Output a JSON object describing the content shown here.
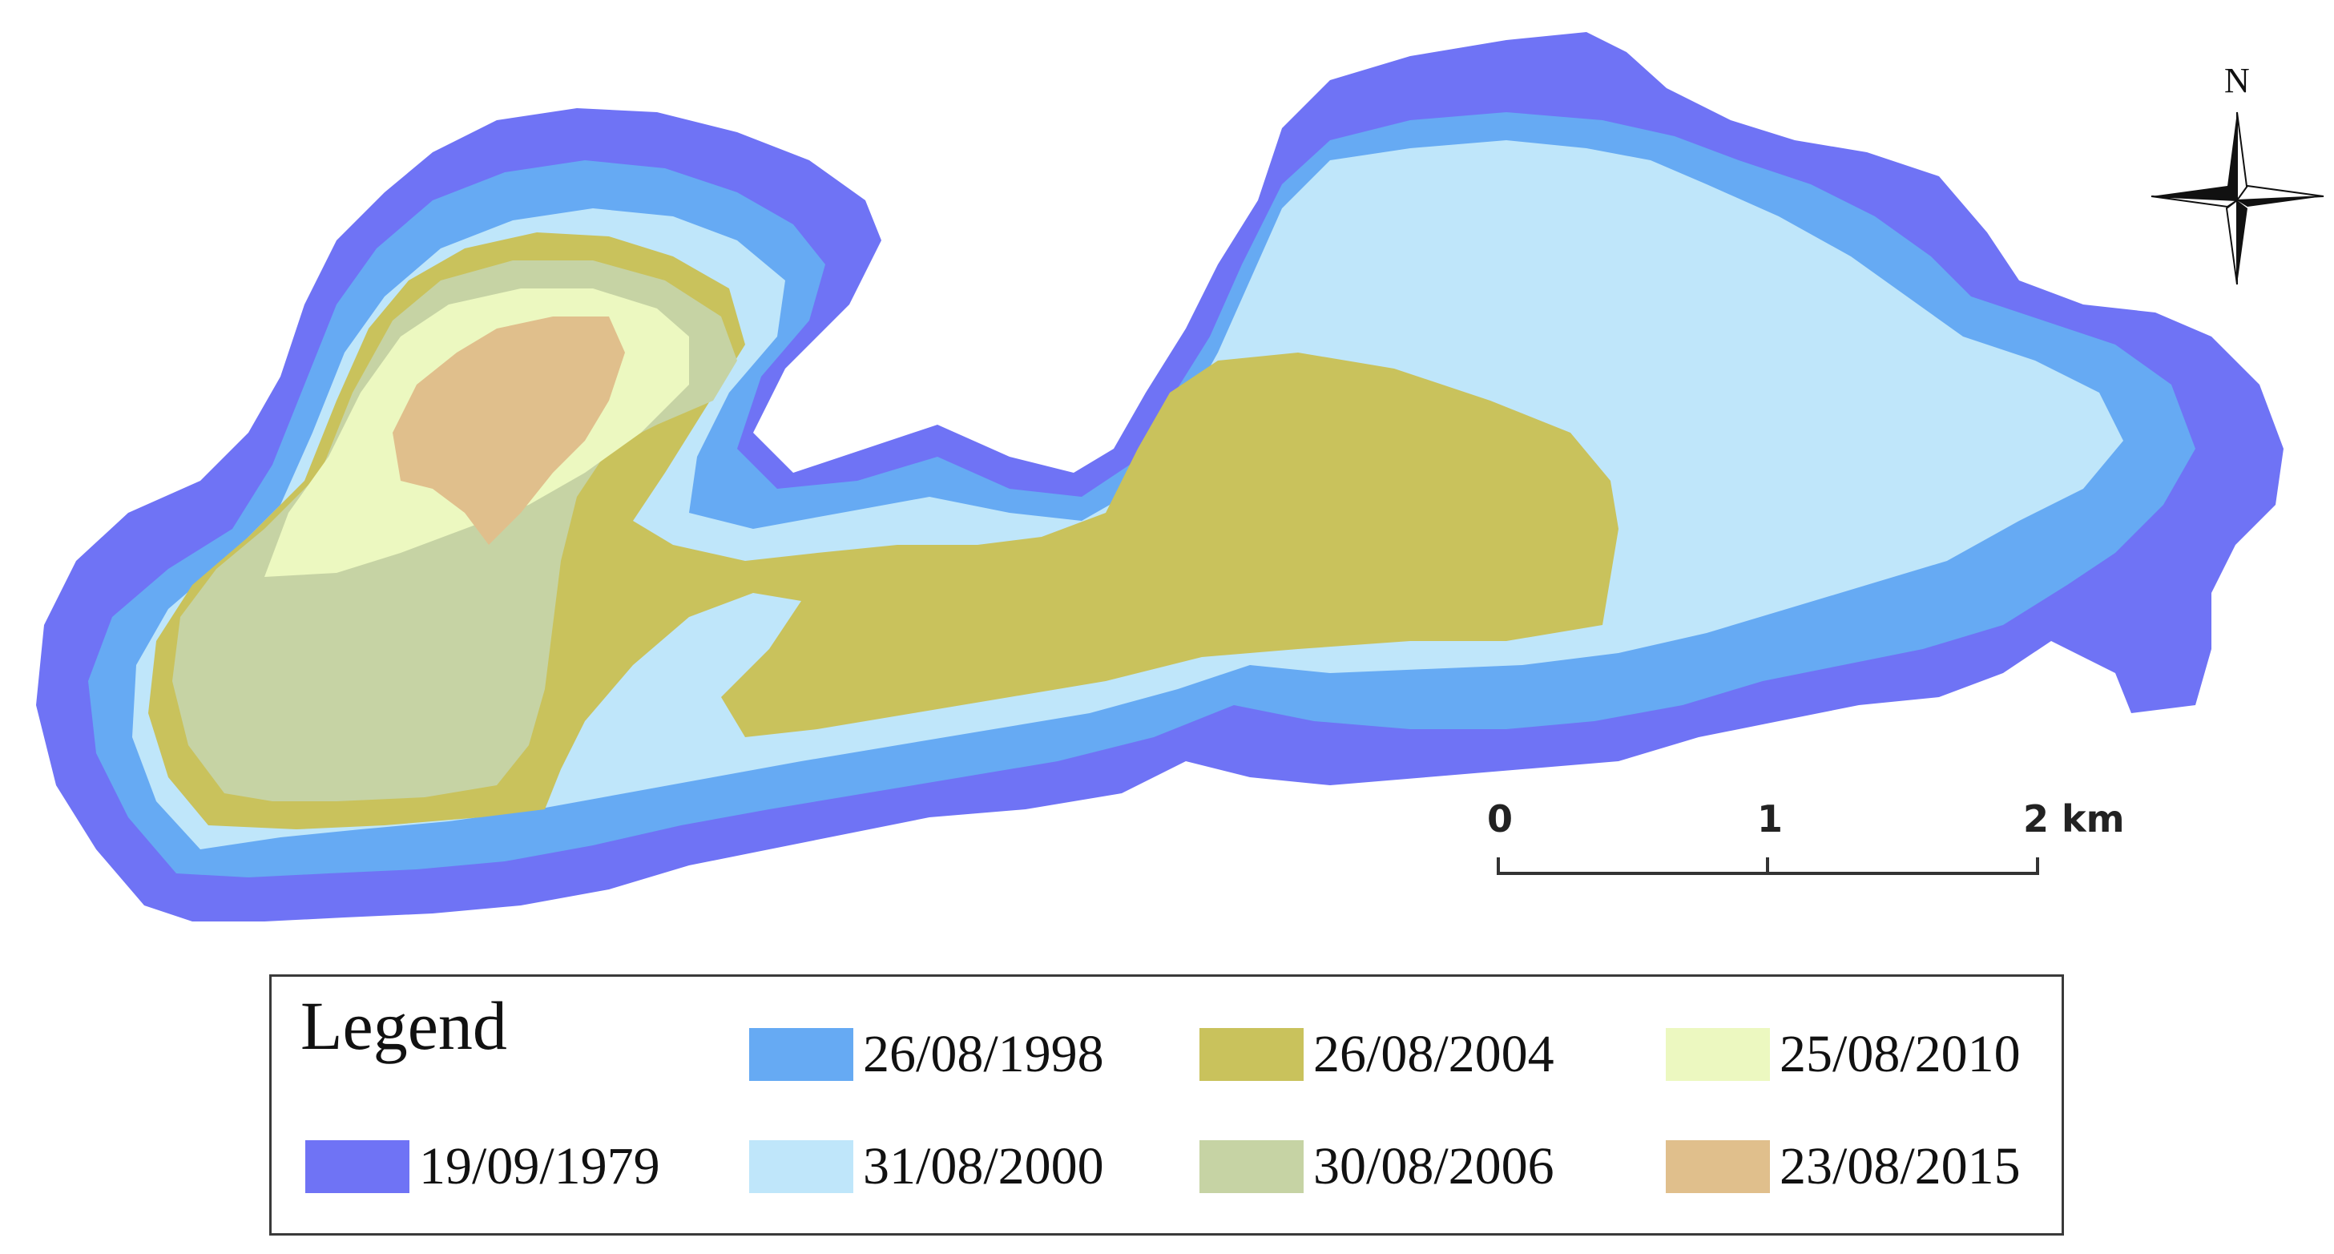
{
  "map": {
    "north_label": "N",
    "scale_bar": {
      "ticks": [
        "0",
        "1",
        "2 km"
      ]
    }
  },
  "legend": {
    "title": "Legend",
    "items": [
      {
        "label": "19/09/1979",
        "color": "#6f73f5"
      },
      {
        "label": "26/08/1998",
        "color": "#66aaf3"
      },
      {
        "label": "31/08/2000",
        "color": "#bfe6fa"
      },
      {
        "label": "26/08/2004",
        "color": "#c9c25c"
      },
      {
        "label": "30/08/2006",
        "color": "#c6d3a4"
      },
      {
        "label": "25/08/2010",
        "color": "#ecf8c0"
      },
      {
        "label": "23/08/2015",
        "color": "#e0bf8c"
      }
    ]
  }
}
